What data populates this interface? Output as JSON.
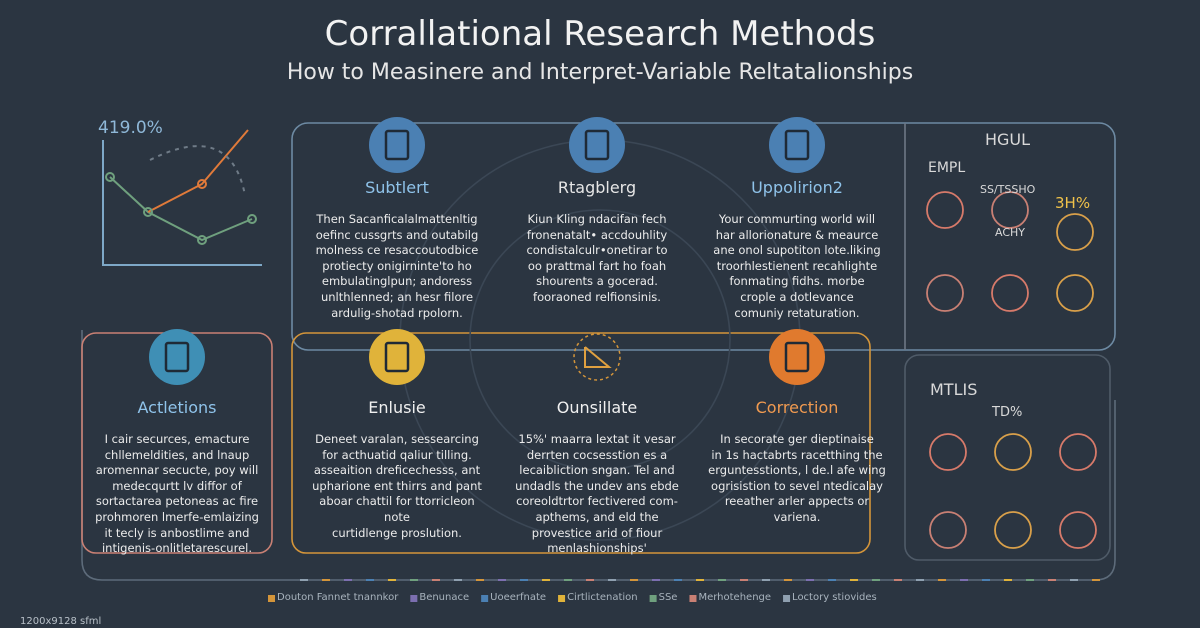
{
  "header": {
    "title": "Corrallational Research Methods",
    "subtitle": "How to Measinere and Interpret-Variable Reltatalionships"
  },
  "mini_chart": {
    "label": "419.0%"
  },
  "cards": [
    {
      "title": "Subtlert",
      "body": [
        "Then Sacanficalalmattenltig",
        "oefinc cussgrts and outabilg",
        "molness ce resaccoutodbice",
        "protiecty onigirninte'to ho",
        "embulatinglpun; andoress",
        "unlthlenned; an hesr filore",
        "ardulig-shotad rpolorn."
      ]
    },
    {
      "title": "Rtagblerg",
      "body": [
        "Kiun Kling ndacifan fech",
        "fronenatalt• accdouhlity",
        "condistalculr•onetirar to",
        "oo prattmal fart ho foah",
        "shourents a gocerad.",
        "fooraoned relfionsinis."
      ]
    },
    {
      "title": "Uppolirion2",
      "body": [
        "Your commurting world will",
        "har allorionature & meaurce",
        "ane onol supotiton lote.liking",
        "troorhlestienent recahlighte",
        "fonmating fidhs. morbe",
        "crople a dotlevance",
        "comuniy retaturation."
      ]
    },
    {
      "title": "Actletions",
      "body": [
        "I cair securces, emacture",
        "chllemeldities, and lnaup",
        "aromennar secucte, poy will",
        "medecqurtt lv diffor of",
        "sortactarea petoneas ac fire",
        "prohmoren lmerfe-emlaizing",
        "it tecly is anbostlime and",
        "intigenis-onlitletarescurel."
      ]
    },
    {
      "title": "Enlusie",
      "body": [
        "Deneet varalan, sessearcing",
        "for acthuatid qaliur tilling.",
        "asseaition dreficechesss, ant",
        "upharione ent thirrs and pant",
        "aboar chattil for ttorricleon",
        "note",
        "curtidlenge proslution."
      ]
    },
    {
      "title": "Ounsillate",
      "body": [
        "15%' maarra lextat it vesar",
        "derrten cocsesstion es a",
        "lecaibliction sngan. Tel and",
        "undadls the undev ans ebde",
        "coreoldtrtor fectivered com-",
        "apthems, and eld the",
        "provestice arid of fiour",
        "menlashionships'"
      ]
    },
    {
      "title": "Correction",
      "body": [
        "In secorate ger dieptinaise",
        "in 1s hactabrts racetthing the",
        "erguntesstionts, l de.l afe wing",
        "ogrisistion to sevel ntedicalay",
        "reeather arler appects or",
        "variena."
      ]
    }
  ],
  "side_top": {
    "title": "HGUL",
    "labels": [
      "EMPL",
      "SS/TSSHO",
      "3H%",
      "ACHY"
    ]
  },
  "side_bottom": {
    "title": "MTLIS",
    "labels": [
      "TD%"
    ]
  },
  "footer": [
    "Douton Fannet tnannkor",
    "Benunace",
    "Uoeerfnate",
    "Cirtlictenation",
    "SSe",
    "Merhotehenge",
    "Loctory stiovides"
  ],
  "corner_note": "1200x9128 sfml"
}
